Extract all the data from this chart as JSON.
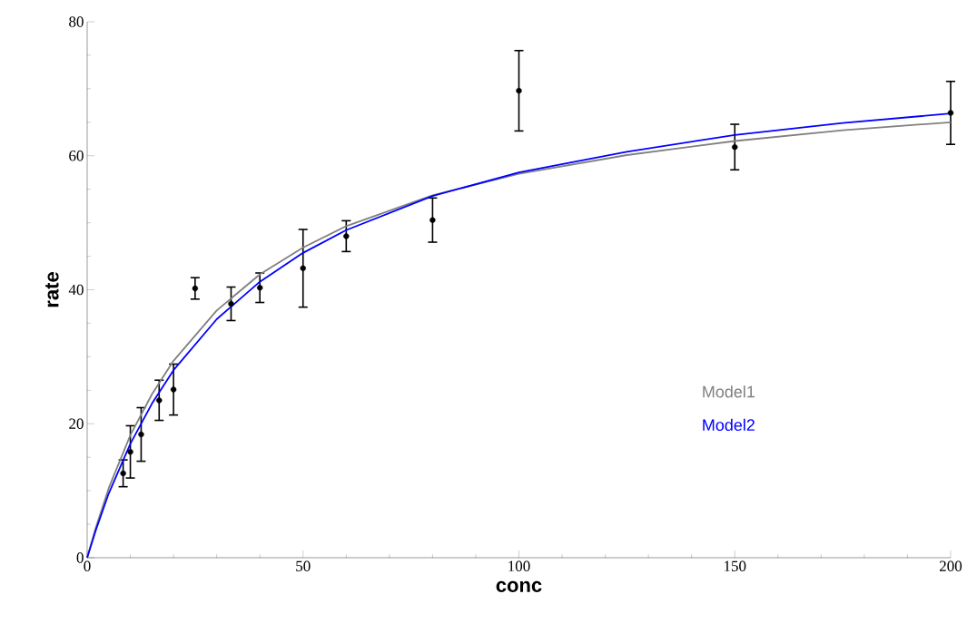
{
  "chart_data": {
    "type": "scatter",
    "xlabel": "conc",
    "ylabel": "rate",
    "xlim": [
      0,
      200
    ],
    "ylim": [
      0,
      80
    ],
    "xticks": [
      0,
      50,
      100,
      150,
      200
    ],
    "yticks": [
      0,
      20,
      40,
      60,
      80
    ],
    "grid": false,
    "marker": "circle",
    "series": [
      {
        "color": "#000000",
        "x": [
          8.33,
          10,
          12.5,
          16.67,
          20,
          25,
          33.33,
          40,
          50,
          60,
          80,
          100,
          150,
          200
        ],
        "values": [
          12.6,
          15.8,
          18.4,
          23.5,
          25.1,
          40.2,
          37.9,
          40.3,
          43.2,
          48.0,
          50.4,
          69.7,
          61.3,
          66.4
        ],
        "errors": [
          2,
          3.9,
          4,
          3,
          3.8,
          1.6,
          2.5,
          2.2,
          5.8,
          2.3,
          3.3,
          6,
          3.4,
          4.7
        ]
      },
      {
        "type": "line",
        "name": "Model1",
        "color": "#808080",
        "marker": "none",
        "x": [
          0,
          2,
          5,
          10,
          15,
          20,
          30,
          40,
          50,
          60,
          80,
          100,
          125,
          150,
          175,
          200
        ],
        "values": [
          0,
          4.5,
          10.4,
          18.3,
          24.4,
          29.4,
          36.9,
          42.3,
          46.3,
          49.5,
          54.1,
          57.3,
          60.1,
          62.2,
          63.8,
          65.0
        ]
      },
      {
        "type": "line",
        "name": "Model2",
        "color": "#0000ff",
        "marker": "none",
        "x": [
          0,
          2,
          5,
          10,
          15,
          20,
          30,
          40,
          50,
          60,
          80,
          100,
          125,
          150,
          175,
          200
        ],
        "values": [
          0,
          4.1,
          9.6,
          17.0,
          23.0,
          28.0,
          35.6,
          41.2,
          45.5,
          48.9,
          54.0,
          57.5,
          60.6,
          63.1,
          64.9,
          66.3
        ]
      }
    ]
  }
}
